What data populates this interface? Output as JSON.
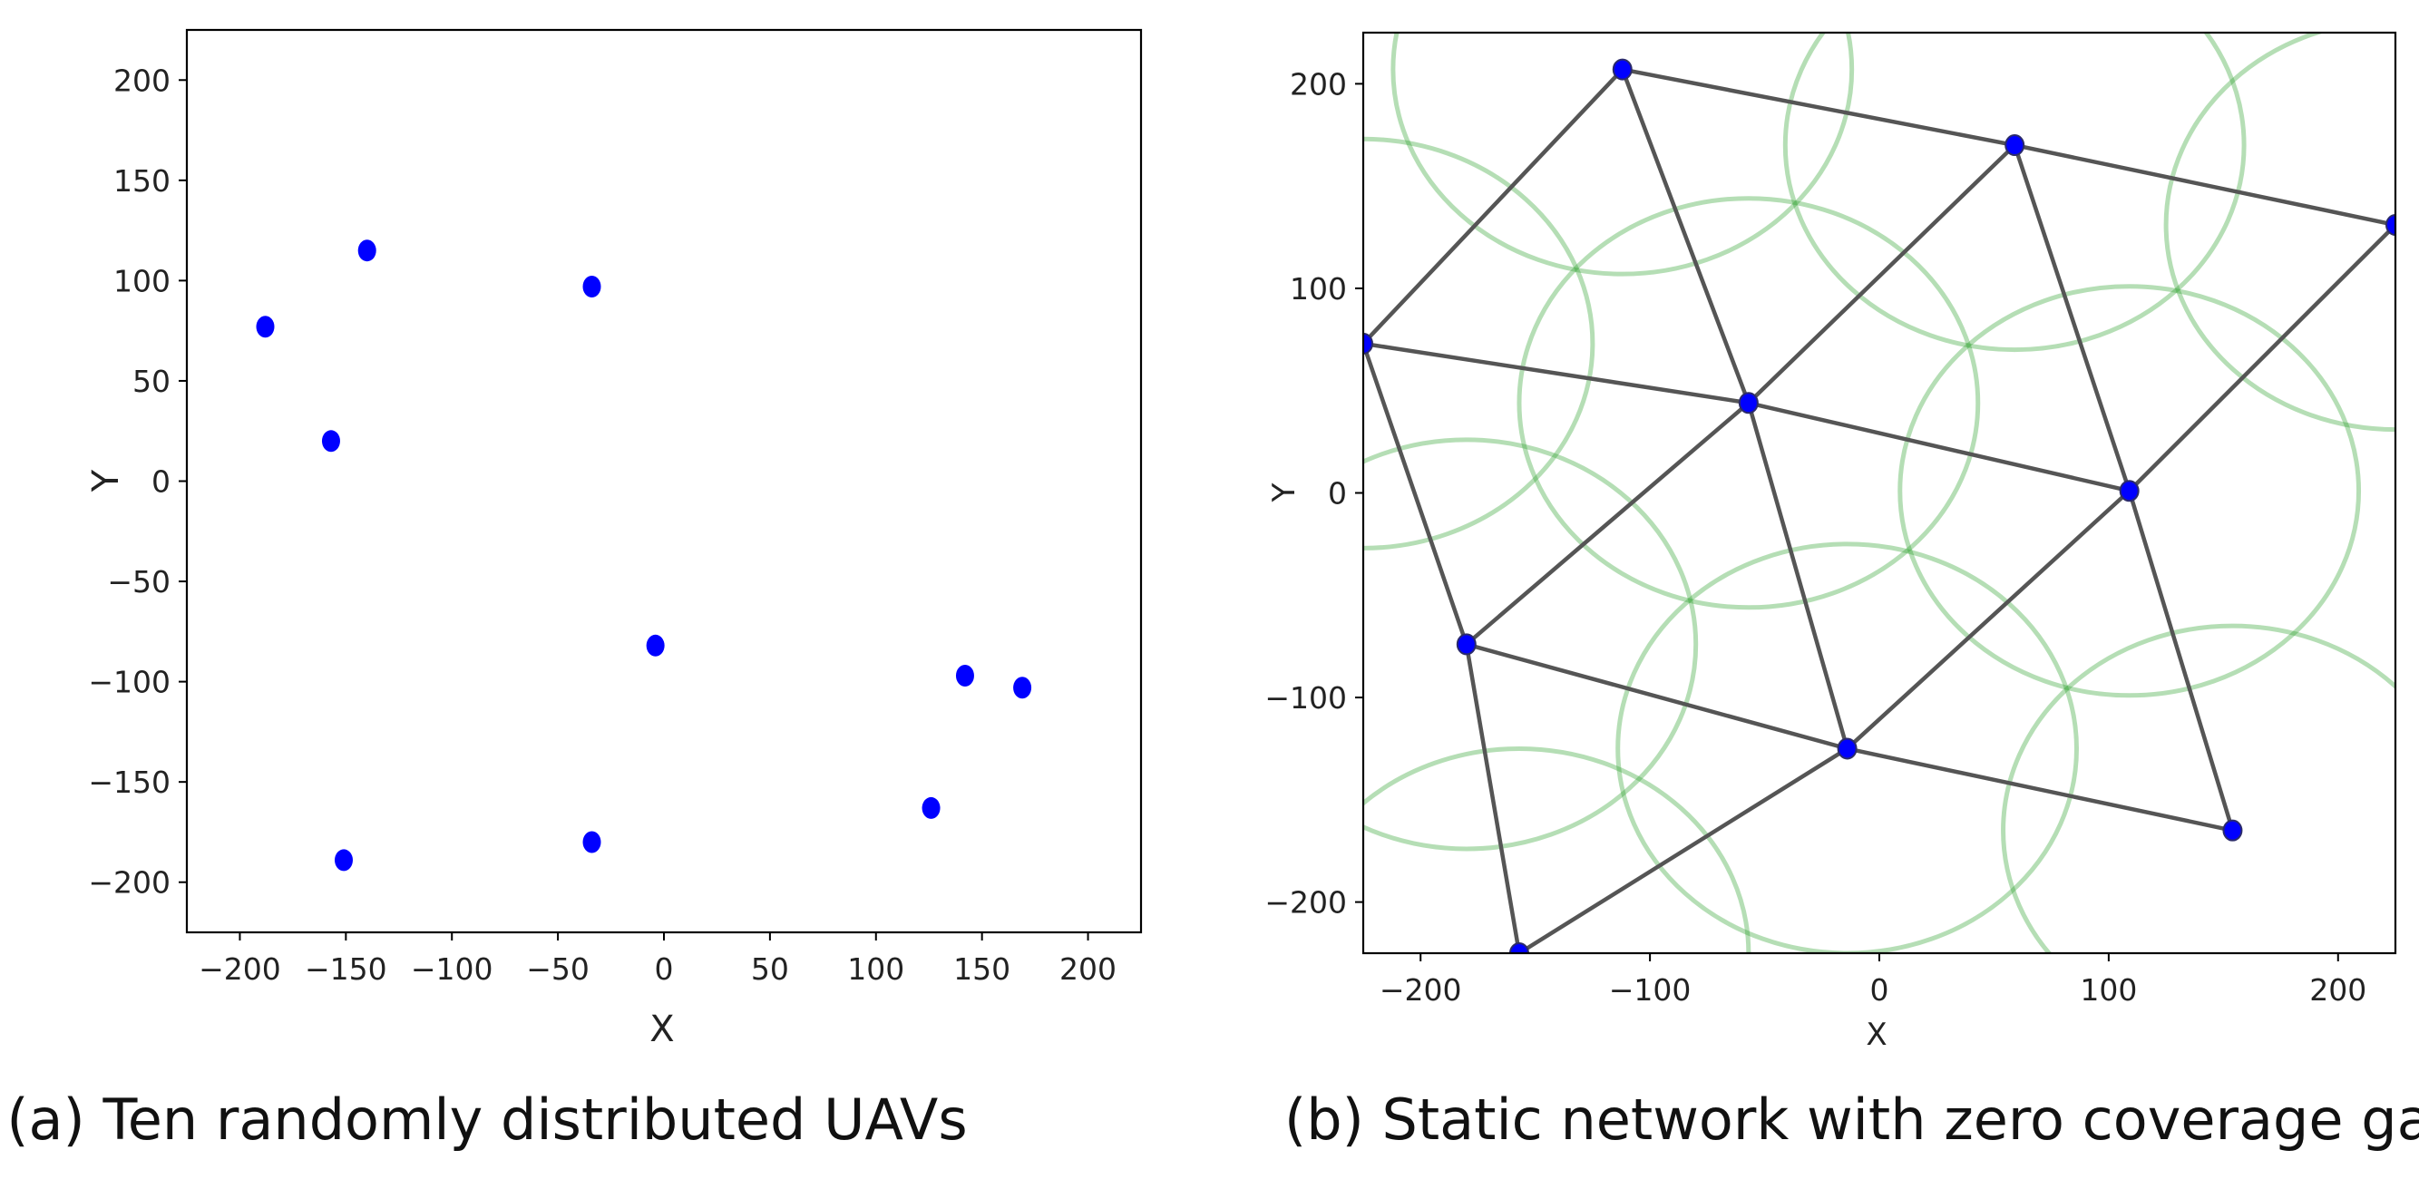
{
  "chart_data": [
    {
      "type": "scatter",
      "panel": "a",
      "caption": "(a) Ten randomly distributed UAVs",
      "xlabel": "X",
      "ylabel": "Y",
      "xlim": [
        -225,
        225
      ],
      "ylim": [
        -225,
        225
      ],
      "xticks": [
        -200,
        -150,
        -100,
        -50,
        0,
        50,
        100,
        150,
        200
      ],
      "yticks": [
        200,
        150,
        100,
        50,
        0,
        -50,
        -100,
        -150,
        -200
      ],
      "tick_labels_x": [
        "−200",
        "−150",
        "−100",
        "−50",
        "0",
        "50",
        "100",
        "150",
        "200"
      ],
      "tick_labels_y": [
        "200",
        "150",
        "100",
        "50",
        "0",
        "−50",
        "−100",
        "−150",
        "−200"
      ],
      "grid": false,
      "marker_color": "#0000ff",
      "points": [
        {
          "x": -188,
          "y": 77
        },
        {
          "x": -140,
          "y": 115
        },
        {
          "x": -157,
          "y": 20
        },
        {
          "x": -34,
          "y": 97
        },
        {
          "x": -4,
          "y": -82
        },
        {
          "x": 142,
          "y": -97
        },
        {
          "x": 169,
          "y": -103
        },
        {
          "x": 126,
          "y": -163
        },
        {
          "x": -151,
          "y": -189
        },
        {
          "x": -34,
          "y": -180
        }
      ]
    },
    {
      "type": "scatter",
      "panel": "b",
      "caption": "(b) Static network with zero coverage gap",
      "xlabel": "X",
      "ylabel": "Y",
      "xlim": [
        -225,
        225
      ],
      "ylim": [
        -225,
        225
      ],
      "xticks": [
        -200,
        -100,
        0,
        100,
        200
      ],
      "yticks": [
        200,
        100,
        0,
        -100,
        -200
      ],
      "tick_labels_x": [
        "−200",
        "−100",
        "0",
        "100",
        "200"
      ],
      "tick_labels_y": [
        "200",
        "100",
        "0",
        "−100",
        "−200"
      ],
      "grid": false,
      "marker_color": "#0000ff",
      "edge_color": "#555555",
      "coverage_color": "#2ca02c",
      "coverage_radius": 100,
      "nodes": [
        {
          "x": -112,
          "y": 207
        },
        {
          "x": 59,
          "y": 170
        },
        {
          "x": 225,
          "y": 131
        },
        {
          "x": -225,
          "y": 73
        },
        {
          "x": -57,
          "y": 44
        },
        {
          "x": 109,
          "y": 1
        },
        {
          "x": -180,
          "y": -74
        },
        {
          "x": -14,
          "y": -125
        },
        {
          "x": 154,
          "y": -165
        },
        {
          "x": -157,
          "y": -225
        }
      ],
      "coverage_centers": [
        {
          "x": -112,
          "y": 207
        },
        {
          "x": 59,
          "y": 170
        },
        {
          "x": 225,
          "y": 131
        },
        {
          "x": -225,
          "y": 73
        },
        {
          "x": -57,
          "y": 44
        },
        {
          "x": 109,
          "y": 1
        },
        {
          "x": -180,
          "y": -74
        },
        {
          "x": -14,
          "y": -125
        },
        {
          "x": 154,
          "y": -165
        },
        {
          "x": -157,
          "y": -225
        }
      ],
      "edges": [
        [
          0,
          1
        ],
        [
          1,
          2
        ],
        [
          0,
          3
        ],
        [
          0,
          4
        ],
        [
          1,
          4
        ],
        [
          1,
          5
        ],
        [
          2,
          5
        ],
        [
          3,
          4
        ],
        [
          4,
          5
        ],
        [
          3,
          6
        ],
        [
          4,
          6
        ],
        [
          4,
          7
        ],
        [
          5,
          7
        ],
        [
          5,
          8
        ],
        [
          6,
          7
        ],
        [
          7,
          8
        ],
        [
          6,
          9
        ],
        [
          7,
          9
        ]
      ]
    }
  ]
}
